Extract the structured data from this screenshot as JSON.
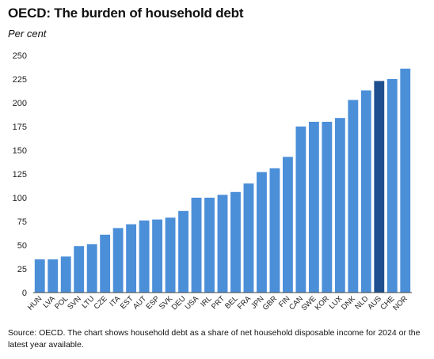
{
  "title": "OECD: The burden of household debt",
  "unit_label": "Per cent",
  "source": "Source: OECD. The chart shows household debt as a share of net household disposable income for 2024 or the latest year available.",
  "colors": {
    "bar": "#4b8fd9",
    "highlight": "#1f4f8f",
    "axis": "#444444"
  },
  "chart_data": {
    "type": "bar",
    "title": "OECD: The burden of household debt",
    "ylabel": "Per cent",
    "xlabel": "",
    "ylim": [
      0,
      250
    ],
    "yticks": [
      0,
      25,
      50,
      75,
      100,
      125,
      150,
      175,
      200,
      225,
      250
    ],
    "grid": false,
    "categories": [
      "HUN",
      "LVA",
      "POL",
      "SVN",
      "LTU",
      "CZE",
      "ITA",
      "EST",
      "AUT",
      "ESP",
      "SVK",
      "DEU",
      "USA",
      "IRL",
      "PRT",
      "BEL",
      "FRA",
      "JPN",
      "GBR",
      "FIN",
      "CAN",
      "SWE",
      "KOR",
      "LUX",
      "DNK",
      "NLD",
      "AUS",
      "CHE",
      "NOR"
    ],
    "values": [
      35,
      35,
      38,
      49,
      51,
      61,
      68,
      72,
      76,
      77,
      79,
      86,
      100,
      100,
      103,
      106,
      115,
      127,
      131,
      143,
      175,
      180,
      180,
      184,
      203,
      213,
      223,
      225,
      236
    ],
    "highlight": [
      "AUS"
    ]
  }
}
